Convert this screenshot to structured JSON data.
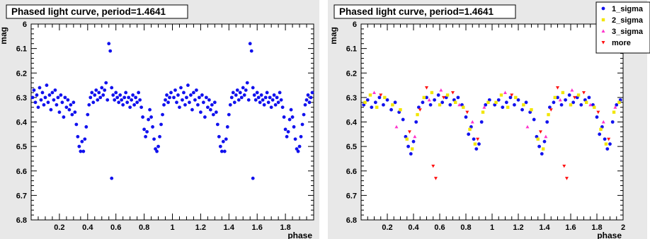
{
  "charts": [
    {
      "title": "Phased light curve, period=1.4641",
      "xlabel": "phase",
      "ylabel": "mag",
      "xticks": [
        "0.2",
        "0.4",
        "0.6",
        "0.8",
        "1",
        "1.2",
        "1.4",
        "1.6",
        "1.8"
      ],
      "yticks": [
        "6",
        "6.1",
        "6.2",
        "6.3",
        "6.4",
        "6.5",
        "6.6",
        "6.7",
        "6.8"
      ]
    },
    {
      "title": "Phased light curve, period=1.4641",
      "xlabel": "phase",
      "ylabel": "mag",
      "xticks": [
        "0.2",
        "0.4",
        "0.6",
        "0.8",
        "1",
        "1.2",
        "1.4",
        "1.6",
        "1.8",
        "2"
      ],
      "yticks": [
        "6",
        "6.1",
        "6.2",
        "6.3",
        "6.4",
        "6.5",
        "6.6",
        "6.7",
        "6.8"
      ],
      "legend": [
        "1_sigma",
        "2_sigma",
        "3_sigma",
        "more"
      ]
    }
  ],
  "chart_data": [
    {
      "type": "scatter",
      "title": "Phased light curve, period=1.4641",
      "xlabel": "phase",
      "ylabel": "mag",
      "xlim": [
        0,
        2
      ],
      "ylim": [
        6.8,
        6.0
      ],
      "grid": false,
      "series": [
        {
          "color": "#1111ee",
          "marker": "circle",
          "points": [
            [
              0.01,
              6.3
            ],
            [
              0.02,
              6.27
            ],
            [
              0.03,
              6.32
            ],
            [
              0.04,
              6.29
            ],
            [
              0.05,
              6.34
            ],
            [
              0.06,
              6.26
            ],
            [
              0.07,
              6.31
            ],
            [
              0.08,
              6.28
            ],
            [
              0.09,
              6.33
            ],
            [
              0.1,
              6.3
            ],
            [
              0.11,
              6.25
            ],
            [
              0.12,
              6.32
            ],
            [
              0.13,
              6.29
            ],
            [
              0.14,
              6.35
            ],
            [
              0.15,
              6.28
            ],
            [
              0.16,
              6.31
            ],
            [
              0.17,
              6.27
            ],
            [
              0.18,
              6.33
            ],
            [
              0.19,
              6.3
            ],
            [
              0.2,
              6.36
            ],
            [
              0.21,
              6.29
            ],
            [
              0.22,
              6.32
            ],
            [
              0.23,
              6.38
            ],
            [
              0.24,
              6.3
            ],
            [
              0.25,
              6.34
            ],
            [
              0.26,
              6.31
            ],
            [
              0.27,
              6.35
            ],
            [
              0.28,
              6.33
            ],
            [
              0.29,
              6.37
            ],
            [
              0.3,
              6.32
            ],
            [
              0.31,
              6.36
            ],
            [
              0.32,
              6.41
            ],
            [
              0.33,
              6.46
            ],
            [
              0.34,
              6.5
            ],
            [
              0.35,
              6.52
            ],
            [
              0.36,
              6.48
            ],
            [
              0.37,
              6.52
            ],
            [
              0.38,
              6.47
            ],
            [
              0.39,
              6.42
            ],
            [
              0.4,
              6.37
            ],
            [
              0.41,
              6.33
            ],
            [
              0.42,
              6.3
            ],
            [
              0.43,
              6.28
            ],
            [
              0.44,
              6.32
            ],
            [
              0.45,
              6.29
            ],
            [
              0.46,
              6.27
            ],
            [
              0.47,
              6.31
            ],
            [
              0.48,
              6.28
            ],
            [
              0.49,
              6.3
            ],
            [
              0.5,
              6.26
            ],
            [
              0.51,
              6.29
            ],
            [
              0.52,
              6.27
            ],
            [
              0.53,
              6.24
            ],
            [
              0.54,
              6.31
            ],
            [
              0.55,
              6.08
            ],
            [
              0.56,
              6.11
            ],
            [
              0.57,
              6.26
            ],
            [
              0.58,
              6.29
            ],
            [
              0.59,
              6.31
            ],
            [
              0.6,
              6.28
            ],
            [
              0.61,
              6.3
            ],
            [
              0.62,
              6.32
            ],
            [
              0.63,
              6.29
            ],
            [
              0.64,
              6.31
            ],
            [
              0.65,
              6.33
            ],
            [
              0.66,
              6.3
            ],
            [
              0.67,
              6.28
            ],
            [
              0.68,
              6.32
            ],
            [
              0.69,
              6.3
            ],
            [
              0.7,
              6.34
            ],
            [
              0.71,
              6.31
            ],
            [
              0.72,
              6.29
            ],
            [
              0.73,
              6.33
            ],
            [
              0.74,
              6.3
            ],
            [
              0.75,
              6.32
            ],
            [
              0.76,
              6.28
            ],
            [
              0.77,
              6.31
            ],
            [
              0.78,
              6.34
            ],
            [
              0.79,
              6.38
            ],
            [
              0.8,
              6.43
            ],
            [
              0.81,
              6.46
            ],
            [
              0.82,
              6.44
            ],
            [
              0.83,
              6.39
            ],
            [
              0.84,
              6.35
            ],
            [
              0.85,
              6.38
            ],
            [
              0.86,
              6.42
            ],
            [
              0.87,
              6.47
            ],
            [
              0.88,
              6.51
            ],
            [
              0.89,
              6.52
            ],
            [
              0.9,
              6.5
            ],
            [
              0.91,
              6.46
            ],
            [
              0.92,
              6.41
            ],
            [
              0.93,
              6.37
            ],
            [
              0.94,
              6.33
            ],
            [
              0.95,
              6.31
            ],
            [
              0.96,
              6.29
            ],
            [
              0.97,
              6.32
            ],
            [
              0.98,
              6.3
            ],
            [
              0.99,
              6.28
            ],
            [
              0.57,
              6.63
            ]
          ]
        }
      ]
    },
    {
      "type": "scatter",
      "title": "Phased light curve, period=1.4641",
      "xlabel": "phase",
      "ylabel": "mag",
      "xlim": [
        0,
        2
      ],
      "ylim": [
        6.8,
        6.0
      ],
      "grid": false,
      "legend_position": "top-right",
      "series": [
        {
          "name": "1_sigma",
          "color": "#1111ee",
          "marker": "circle",
          "points": [
            [
              0.02,
              6.33
            ],
            [
              0.05,
              6.31
            ],
            [
              0.08,
              6.34
            ],
            [
              0.11,
              6.32
            ],
            [
              0.14,
              6.3
            ],
            [
              0.17,
              6.33
            ],
            [
              0.2,
              6.31
            ],
            [
              0.23,
              6.35
            ],
            [
              0.26,
              6.32
            ],
            [
              0.29,
              6.36
            ],
            [
              0.32,
              6.39
            ],
            [
              0.34,
              6.46
            ],
            [
              0.36,
              6.5
            ],
            [
              0.38,
              6.53
            ],
            [
              0.4,
              6.48
            ],
            [
              0.42,
              6.4
            ],
            [
              0.44,
              6.34
            ],
            [
              0.47,
              6.32
            ],
            [
              0.5,
              6.3
            ],
            [
              0.53,
              6.33
            ],
            [
              0.56,
              6.31
            ],
            [
              0.59,
              6.29
            ],
            [
              0.62,
              6.32
            ],
            [
              0.65,
              6.3
            ],
            [
              0.68,
              6.33
            ],
            [
              0.71,
              6.31
            ],
            [
              0.74,
              6.3
            ],
            [
              0.77,
              6.33
            ],
            [
              0.8,
              6.38
            ],
            [
              0.82,
              6.45
            ],
            [
              0.84,
              6.42
            ],
            [
              0.86,
              6.47
            ],
            [
              0.88,
              6.51
            ],
            [
              0.9,
              6.49
            ],
            [
              0.92,
              6.4
            ],
            [
              0.95,
              6.33
            ],
            [
              0.98,
              6.31
            ]
          ]
        },
        {
          "name": "2_sigma",
          "color": "#f2e600",
          "marker": "square",
          "points": [
            [
              0.03,
              6.32
            ],
            [
              0.07,
              6.29
            ],
            [
              0.12,
              6.34
            ],
            [
              0.18,
              6.3
            ],
            [
              0.24,
              6.33
            ],
            [
              0.3,
              6.35
            ],
            [
              0.35,
              6.47
            ],
            [
              0.39,
              6.51
            ],
            [
              0.43,
              6.37
            ],
            [
              0.48,
              6.3
            ],
            [
              0.54,
              6.28
            ],
            [
              0.6,
              6.33
            ],
            [
              0.66,
              6.29
            ],
            [
              0.72,
              6.32
            ],
            [
              0.78,
              6.34
            ],
            [
              0.83,
              6.43
            ],
            [
              0.87,
              6.49
            ],
            [
              0.93,
              6.36
            ],
            [
              0.97,
              6.32
            ]
          ]
        },
        {
          "name": "3_sigma",
          "color": "#ff33cc",
          "marker": "triangle-up",
          "points": [
            [
              0.1,
              6.28
            ],
            [
              0.27,
              6.42
            ],
            [
              0.41,
              6.46
            ],
            [
              0.52,
              6.31
            ],
            [
              0.61,
              6.27
            ],
            [
              0.75,
              6.33
            ],
            [
              0.85,
              6.4
            ],
            [
              0.94,
              6.34
            ]
          ]
        },
        {
          "name": "more",
          "color": "#ff1111",
          "marker": "triangle-down",
          "points": [
            [
              0.15,
              6.29
            ],
            [
              0.37,
              6.44
            ],
            [
              0.45,
              6.35
            ],
            [
              0.5,
              6.26
            ],
            [
              0.55,
              6.58
            ],
            [
              0.57,
              6.63
            ],
            [
              0.63,
              6.3
            ],
            [
              0.7,
              6.28
            ],
            [
              0.81,
              6.36
            ],
            [
              0.89,
              6.47
            ]
          ]
        }
      ]
    }
  ]
}
